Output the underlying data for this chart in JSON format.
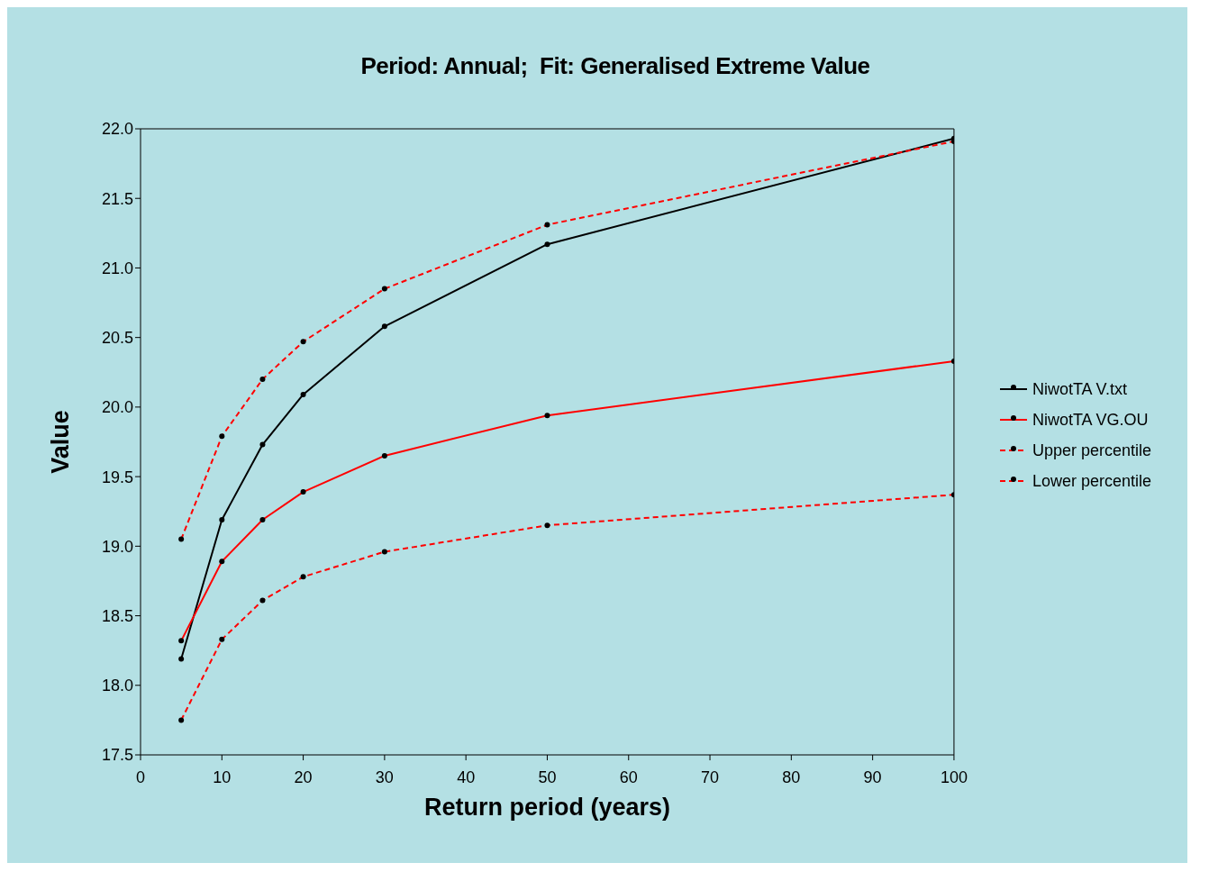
{
  "chart_data": {
    "type": "line",
    "title": "Period: Annual;  Fit: Generalised Extreme Value",
    "xlabel": "Return period (years)",
    "ylabel": "Value",
    "x": [
      5,
      10,
      15,
      20,
      30,
      50,
      100
    ],
    "series": [
      {
        "name": "NiwotTA V.txt",
        "color": "#000000",
        "values": [
          18.19,
          19.19,
          19.73,
          20.09,
          20.58,
          21.17,
          21.93
        ],
        "line_style": "solid"
      },
      {
        "name": "NiwotTA VG.OU",
        "color": "#ff0000",
        "values": [
          18.32,
          18.89,
          19.19,
          19.39,
          19.65,
          19.94,
          20.33
        ],
        "line_style": "solid"
      },
      {
        "name": "Upper percentile",
        "color": "#ff0000",
        "values": [
          19.05,
          19.79,
          20.2,
          20.47,
          20.85,
          21.31,
          21.91
        ],
        "line_style": "dashed"
      },
      {
        "name": "Lower percentile",
        "color": "#ff0000",
        "values": [
          17.75,
          18.33,
          18.61,
          18.78,
          18.96,
          19.15,
          19.37
        ],
        "line_style": "dashed"
      }
    ],
    "xlim": [
      0,
      100
    ],
    "xticks": [
      0,
      10,
      20,
      30,
      40,
      50,
      60,
      70,
      80,
      90,
      100
    ],
    "ylim": [
      17.5,
      22
    ],
    "yticks": [
      {
        "value": 17.5,
        "label": "17.5"
      },
      {
        "value": 18,
        "label": "18.0"
      },
      {
        "value": 18.5,
        "label": "18.5"
      },
      {
        "value": 19,
        "label": "19.0"
      },
      {
        "value": 19.5,
        "label": "19.5"
      },
      {
        "value": 20,
        "label": "20.0"
      },
      {
        "value": 20.5,
        "label": "20.5"
      },
      {
        "value": 21,
        "label": "21.0"
      },
      {
        "value": 21.5,
        "label": "21.5"
      },
      {
        "value": 22,
        "label": "22.0"
      }
    ],
    "grid": false,
    "legend": "right",
    "marker": "circle"
  }
}
